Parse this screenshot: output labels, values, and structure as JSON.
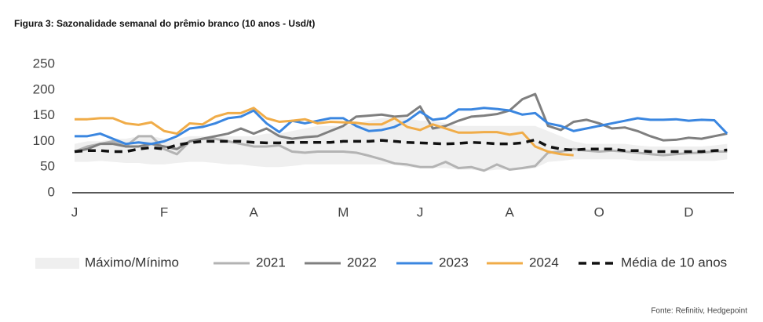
{
  "chart_data": {
    "type": "line",
    "title": "Figura 3: Sazonalidade semanal do prêmio branco (10 anos - Usd/t)",
    "source": "Fonte: Refinitiv, Hedgepoint",
    "categories": [
      "J",
      null,
      null,
      null,
      null,
      null,
      null,
      "F",
      null,
      null,
      null,
      null,
      null,
      null,
      "A",
      null,
      null,
      null,
      null,
      null,
      null,
      "M",
      null,
      null,
      null,
      null,
      null,
      "J",
      null,
      null,
      null,
      null,
      null,
      null,
      "A",
      null,
      null,
      null,
      null,
      null,
      null,
      "O",
      null,
      null,
      null,
      null,
      null,
      null,
      "D",
      null,
      null,
      null
    ],
    "ylim": [
      0,
      250
    ],
    "yticks": [
      0,
      50,
      100,
      150,
      200,
      250
    ],
    "band": {
      "name": "Máximo/Mínimo",
      "color": "#efefef",
      "max": [
        95,
        100,
        100,
        105,
        105,
        110,
        110,
        105,
        105,
        110,
        110,
        110,
        110,
        110,
        110,
        115,
        115,
        120,
        125,
        130,
        130,
        130,
        135,
        140,
        145,
        145,
        145,
        140,
        140,
        135,
        130,
        130,
        130,
        130,
        130,
        130,
        130,
        120,
        110,
        100,
        95,
        95,
        95,
        95,
        92,
        90,
        90,
        90,
        90,
        90,
        92,
        95
      ],
      "min": [
        60,
        60,
        62,
        60,
        58,
        58,
        55,
        55,
        58,
        60,
        60,
        58,
        55,
        55,
        52,
        50,
        50,
        52,
        55,
        55,
        55,
        55,
        55,
        55,
        55,
        55,
        50,
        48,
        48,
        48,
        45,
        45,
        42,
        45,
        45,
        45,
        48,
        60,
        62,
        65,
        65,
        65,
        65,
        65,
        62,
        62,
        62,
        62,
        62,
        62,
        62,
        65
      ]
    },
    "series": [
      {
        "name": "2021",
        "color": "#b3b3b3",
        "values": [
          80,
          90,
          95,
          100,
          90,
          110,
          110,
          85,
          75,
          100,
          105,
          105,
          100,
          95,
          90,
          90,
          92,
          80,
          78,
          80,
          80,
          80,
          78,
          72,
          65,
          57,
          55,
          50,
          50,
          60,
          48,
          50,
          43,
          55,
          45,
          48,
          52,
          78,
          80,
          85,
          82,
          80,
          82,
          80,
          78,
          75,
          73,
          75,
          77,
          78,
          80,
          80
        ]
      },
      {
        "name": "2022",
        "color": "#7f7f7f",
        "values": [
          80,
          85,
          95,
          95,
          90,
          90,
          95,
          90,
          85,
          100,
          105,
          110,
          115,
          125,
          115,
          125,
          110,
          105,
          108,
          110,
          120,
          130,
          148,
          150,
          152,
          148,
          150,
          168,
          125,
          130,
          140,
          148,
          150,
          153,
          160,
          182,
          192,
          130,
          122,
          138,
          142,
          135,
          125,
          127,
          120,
          110,
          102,
          103,
          107,
          105,
          110,
          115
        ]
      },
      {
        "name": "2023",
        "color": "#3a86e0",
        "values": [
          110,
          110,
          115,
          105,
          95,
          98,
          95,
          100,
          110,
          125,
          128,
          135,
          145,
          148,
          160,
          135,
          118,
          140,
          135,
          140,
          145,
          145,
          130,
          120,
          122,
          128,
          140,
          158,
          142,
          145,
          162,
          162,
          165,
          163,
          160,
          152,
          155,
          135,
          130,
          120,
          125,
          130,
          135,
          140,
          145,
          142,
          142,
          143,
          140,
          142,
          141,
          115
        ]
      },
      {
        "name": "2024",
        "color": "#f0ac48",
        "values": [
          143,
          143,
          145,
          145,
          135,
          132,
          137,
          120,
          115,
          135,
          133,
          148,
          155,
          155,
          165,
          145,
          138,
          140,
          143,
          135,
          138,
          137,
          136,
          133,
          133,
          145,
          128,
          122,
          133,
          125,
          117,
          117,
          118,
          118,
          113,
          117,
          90,
          80,
          75,
          73,
          null,
          null,
          null,
          null,
          null,
          null,
          null,
          null,
          null,
          null,
          null,
          null
        ]
      },
      {
        "name": "Média de 10 anos",
        "color": "#111111",
        "dash": true,
        "values": [
          80,
          82,
          82,
          80,
          80,
          85,
          88,
          85,
          93,
          97,
          100,
          100,
          100,
          100,
          98,
          97,
          97,
          98,
          98,
          98,
          98,
          100,
          100,
          100,
          102,
          100,
          98,
          97,
          96,
          95,
          96,
          98,
          97,
          95,
          95,
          97,
          103,
          90,
          85,
          83,
          85,
          85,
          85,
          82,
          82,
          80,
          80,
          80,
          80,
          80,
          82,
          83
        ]
      }
    ]
  }
}
